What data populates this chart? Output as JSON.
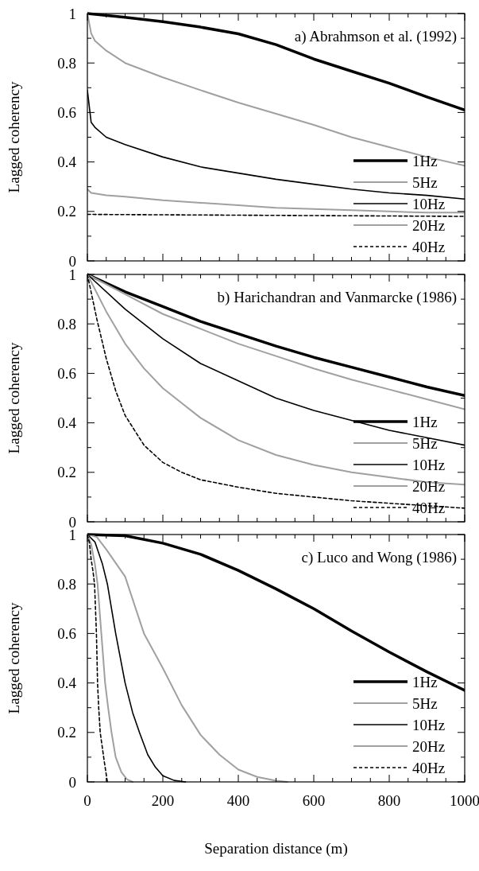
{
  "chart_data": [
    {
      "type": "line",
      "title": "a) Abrahmson et al. (1992)",
      "ylabel": "Lagged coherency",
      "xlim": [
        0,
        1000
      ],
      "ylim": [
        0,
        1
      ],
      "tick_labels": "y",
      "legend": "bottom right",
      "xticks": [
        0,
        {
          "value": 50,
          "label": null
        },
        {
          "value": 100,
          "label": null
        },
        {
          "value": 150,
          "label": null
        },
        200,
        {
          "value": 250,
          "label": null
        },
        {
          "value": 300,
          "label": null
        },
        {
          "value": 350,
          "label": null
        },
        400,
        {
          "value": 450,
          "label": null
        },
        {
          "value": 500,
          "label": null
        },
        {
          "value": 550,
          "label": null
        },
        600,
        {
          "value": 650,
          "label": null
        },
        {
          "value": 700,
          "label": null
        },
        {
          "value": 750,
          "label": null
        },
        800,
        {
          "value": 850,
          "label": null
        },
        {
          "value": 900,
          "label": null
        },
        {
          "value": 950,
          "label": null
        },
        1000
      ],
      "yticks": [
        0,
        {
          "value": 0.1,
          "label": null
        },
        0.2,
        {
          "value": 0.3,
          "label": null
        },
        0.4,
        {
          "value": 0.5,
          "label": null
        },
        0.6,
        {
          "value": 0.7,
          "label": null
        },
        0.8,
        {
          "value": 0.9,
          "label": null
        },
        1
      ],
      "series": [
        {
          "name": "1Hz",
          "color": "#000000",
          "line_style": "solid",
          "x": [
            0,
            100,
            200,
            300,
            400,
            500,
            600,
            700,
            800,
            900,
            1000
          ],
          "values": [
            1.0,
            0.985,
            0.967,
            0.945,
            0.918,
            0.874,
            0.816,
            0.767,
            0.718,
            0.663,
            0.61
          ]
        },
        {
          "name": "5Hz",
          "color": "#a0a0a0",
          "line_style": "solid",
          "x": [
            0,
            10,
            20,
            50,
            100,
            200,
            300,
            400,
            500,
            600,
            700,
            800,
            900,
            1000
          ],
          "values": [
            1.0,
            0.92,
            0.89,
            0.85,
            0.8,
            0.742,
            0.69,
            0.64,
            0.595,
            0.55,
            0.5,
            0.46,
            0.42,
            0.385
          ]
        },
        {
          "name": "10Hz",
          "color": "#000000",
          "line_style": "solid",
          "x": [
            0,
            10,
            20,
            50,
            100,
            200,
            300,
            400,
            500,
            600,
            700,
            800,
            900,
            1000
          ],
          "values": [
            0.69,
            0.56,
            0.54,
            0.5,
            0.47,
            0.42,
            0.38,
            0.355,
            0.33,
            0.31,
            0.29,
            0.275,
            0.265,
            0.25
          ]
        },
        {
          "name": "20Hz",
          "color": "#a0a0a0",
          "line_style": "solid",
          "x": [
            0,
            10,
            50,
            100,
            200,
            300,
            400,
            500,
            600,
            700,
            800,
            900,
            1000
          ],
          "values": [
            0.29,
            0.275,
            0.265,
            0.26,
            0.245,
            0.235,
            0.225,
            0.215,
            0.21,
            0.205,
            0.2,
            0.195,
            0.195
          ]
        },
        {
          "name": "40Hz",
          "color": "#000000",
          "line_style": "dashed",
          "x": [
            0,
            500,
            1000
          ],
          "values": [
            0.188,
            0.184,
            0.18
          ]
        }
      ]
    },
    {
      "type": "line",
      "title": "b) Harichandran and Vanmarcke (1986)",
      "ylabel": "Lagged coherency",
      "xlim": [
        0,
        1000
      ],
      "ylim": [
        0,
        1
      ],
      "tick_labels": "y",
      "legend": "bottom right",
      "xticks": [
        0,
        {
          "value": 50,
          "label": null
        },
        {
          "value": 100,
          "label": null
        },
        {
          "value": 150,
          "label": null
        },
        200,
        {
          "value": 250,
          "label": null
        },
        {
          "value": 300,
          "label": null
        },
        {
          "value": 350,
          "label": null
        },
        400,
        {
          "value": 450,
          "label": null
        },
        {
          "value": 500,
          "label": null
        },
        {
          "value": 550,
          "label": null
        },
        600,
        {
          "value": 650,
          "label": null
        },
        {
          "value": 700,
          "label": null
        },
        {
          "value": 750,
          "label": null
        },
        800,
        {
          "value": 850,
          "label": null
        },
        {
          "value": 900,
          "label": null
        },
        {
          "value": 950,
          "label": null
        },
        1000
      ],
      "yticks": [
        0,
        {
          "value": 0.1,
          "label": null
        },
        0.2,
        {
          "value": 0.3,
          "label": null
        },
        0.4,
        {
          "value": 0.5,
          "label": null
        },
        0.6,
        {
          "value": 0.7,
          "label": null
        },
        0.8,
        {
          "value": 0.9,
          "label": null
        },
        1
      ],
      "series": [
        {
          "name": "1Hz",
          "color": "#000000",
          "line_style": "solid",
          "x": [
            0,
            100,
            200,
            300,
            400,
            500,
            600,
            700,
            800,
            900,
            1000
          ],
          "values": [
            1.0,
            0.93,
            0.87,
            0.81,
            0.76,
            0.71,
            0.665,
            0.625,
            0.585,
            0.545,
            0.51
          ]
        },
        {
          "name": "5Hz",
          "color": "#a0a0a0",
          "line_style": "solid",
          "x": [
            0,
            100,
            200,
            300,
            400,
            500,
            600,
            700,
            800,
            900,
            1000
          ],
          "values": [
            1.0,
            0.92,
            0.84,
            0.78,
            0.72,
            0.67,
            0.62,
            0.575,
            0.535,
            0.495,
            0.455
          ]
        },
        {
          "name": "10Hz",
          "color": "#000000",
          "line_style": "solid",
          "x": [
            0,
            100,
            200,
            300,
            400,
            500,
            600,
            700,
            800,
            900,
            1000
          ],
          "values": [
            1.0,
            0.86,
            0.74,
            0.64,
            0.57,
            0.5,
            0.45,
            0.41,
            0.37,
            0.34,
            0.31
          ]
        },
        {
          "name": "20Hz",
          "color": "#a0a0a0",
          "line_style": "solid",
          "x": [
            0,
            50,
            100,
            150,
            200,
            300,
            400,
            500,
            600,
            700,
            800,
            900,
            1000
          ],
          "values": [
            1.0,
            0.85,
            0.72,
            0.62,
            0.54,
            0.42,
            0.33,
            0.27,
            0.23,
            0.2,
            0.18,
            0.16,
            0.15
          ]
        },
        {
          "name": "40Hz",
          "color": "#000000",
          "line_style": "dashed",
          "x": [
            0,
            25,
            50,
            75,
            100,
            150,
            200,
            250,
            300,
            400,
            500,
            600,
            700,
            800,
            900,
            1000
          ],
          "values": [
            1.0,
            0.82,
            0.66,
            0.53,
            0.43,
            0.31,
            0.24,
            0.2,
            0.17,
            0.14,
            0.115,
            0.1,
            0.085,
            0.075,
            0.065,
            0.055
          ]
        }
      ]
    },
    {
      "type": "line",
      "title": "c) Luco and Wong (1986)",
      "ylabel": "Lagged coherency",
      "xlabel": "Separation distance (m)",
      "xlim": [
        0,
        1000
      ],
      "ylim": [
        0,
        1
      ],
      "legend": "bottom right",
      "xticks": [
        0,
        {
          "value": 50,
          "label": null
        },
        {
          "value": 100,
          "label": null
        },
        {
          "value": 150,
          "label": null
        },
        200,
        {
          "value": 250,
          "label": null
        },
        {
          "value": 300,
          "label": null
        },
        {
          "value": 350,
          "label": null
        },
        400,
        {
          "value": 450,
          "label": null
        },
        {
          "value": 500,
          "label": null
        },
        {
          "value": 550,
          "label": null
        },
        600,
        {
          "value": 650,
          "label": null
        },
        {
          "value": 700,
          "label": null
        },
        {
          "value": 750,
          "label": null
        },
        800,
        {
          "value": 850,
          "label": null
        },
        {
          "value": 900,
          "label": null
        },
        {
          "value": 950,
          "label": null
        },
        1000
      ],
      "yticks": [
        0,
        {
          "value": 0.1,
          "label": null
        },
        0.2,
        {
          "value": 0.3,
          "label": null
        },
        0.4,
        {
          "value": 0.5,
          "label": null
        },
        0.6,
        {
          "value": 0.7,
          "label": null
        },
        0.8,
        {
          "value": 0.9,
          "label": null
        },
        1
      ],
      "series": [
        {
          "name": "1Hz",
          "color": "#000000",
          "line_style": "solid",
          "x": [
            0,
            100,
            200,
            300,
            400,
            500,
            600,
            700,
            800,
            900,
            1000
          ],
          "values": [
            1.0,
            0.995,
            0.965,
            0.92,
            0.855,
            0.78,
            0.7,
            0.61,
            0.525,
            0.445,
            0.37
          ]
        },
        {
          "name": "5Hz",
          "color": "#a0a0a0",
          "line_style": "solid",
          "x": [
            0,
            25,
            50,
            100,
            150,
            200,
            250,
            300,
            350,
            400,
            450,
            500,
            530
          ],
          "values": [
            1.0,
            0.99,
            0.94,
            0.83,
            0.6,
            0.46,
            0.31,
            0.19,
            0.11,
            0.05,
            0.02,
            0.005,
            0
          ]
        },
        {
          "name": "10Hz",
          "color": "#000000",
          "line_style": "solid",
          "x": [
            0,
            20,
            40,
            53,
            75,
            100,
            120,
            138,
            160,
            180,
            200,
            230,
            260
          ],
          "values": [
            1.0,
            0.97,
            0.88,
            0.8,
            0.6,
            0.4,
            0.28,
            0.2,
            0.11,
            0.06,
            0.025,
            0.006,
            0
          ]
        },
        {
          "name": "20Hz",
          "color": "#a0a0a0",
          "line_style": "solid",
          "x": [
            0,
            10,
            20,
            27,
            37,
            47,
            55,
            64,
            75,
            90,
            105,
            120
          ],
          "values": [
            1.0,
            0.96,
            0.88,
            0.8,
            0.6,
            0.4,
            0.3,
            0.2,
            0.1,
            0.04,
            0.01,
            0
          ]
        },
        {
          "name": "40Hz",
          "color": "#000000",
          "line_style": "dashed",
          "x": [
            0,
            5,
            10,
            15,
            19,
            24,
            27,
            30,
            34,
            45,
            53
          ],
          "values": [
            1.0,
            0.97,
            0.9,
            0.85,
            0.8,
            0.6,
            0.4,
            0.3,
            0.2,
            0.08,
            0
          ]
        }
      ]
    }
  ]
}
